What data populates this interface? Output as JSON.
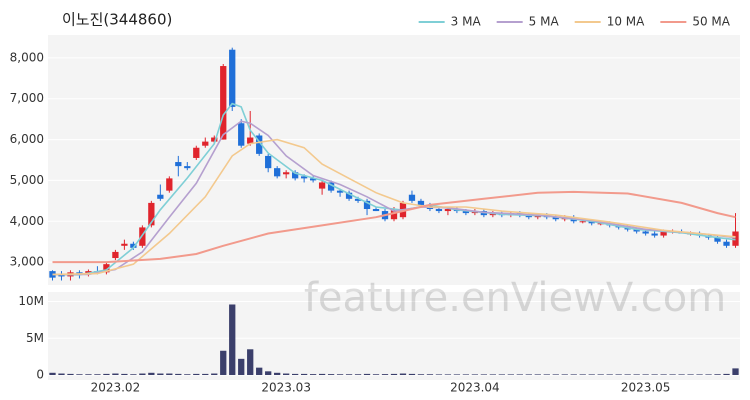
{
  "watermark": "feature.enViewV.com",
  "chart_data": [
    {
      "type": "candlestick",
      "title": "이노진(344860)",
      "legend": "top-right",
      "up_color": "#e0242c",
      "down_color": "#1f6fd8",
      "open": [
        2780,
        2700,
        2650,
        2750,
        2700,
        2780,
        2750,
        3100,
        3400,
        3450,
        3400,
        3900,
        4650,
        4750,
        5450,
        5350,
        5550,
        5850,
        5950,
        6000,
        8200,
        6400,
        5900,
        6100,
        5600,
        5300,
        5150,
        5200,
        5100,
        5050,
        4800,
        4950,
        4750,
        4700,
        4550,
        4500,
        4300,
        4250,
        4050,
        4100,
        4650,
        4500,
        4400,
        4300,
        4250,
        4300,
        4250,
        4200,
        4250,
        4150,
        4200,
        4150,
        4200,
        4150,
        4100,
        4150,
        4100,
        4050,
        4100,
        4000,
        4000,
        3950,
        3950,
        3900,
        3850,
        3800,
        3750,
        3700,
        3650,
        3750,
        3750,
        3700,
        3700,
        3650,
        3600,
        3500,
        3400
      ],
      "high": [
        2800,
        2780,
        2800,
        2800,
        2820,
        2900,
        3000,
        3300,
        3550,
        3500,
        3900,
        4500,
        4900,
        5100,
        5600,
        5450,
        5850,
        6050,
        6100,
        7850,
        8250,
        6500,
        6700,
        6150,
        5650,
        5350,
        5250,
        5250,
        5150,
        5100,
        5000,
        5000,
        4800,
        4750,
        4600,
        4550,
        4350,
        4300,
        4350,
        4500,
        4750,
        4550,
        4450,
        4350,
        4350,
        4350,
        4300,
        4300,
        4300,
        4250,
        4250,
        4250,
        4250,
        4200,
        4200,
        4200,
        4150,
        4150,
        4150,
        4050,
        4050,
        4000,
        4000,
        3950,
        3900,
        3850,
        3800,
        3750,
        3800,
        3800,
        3800,
        3750,
        3750,
        3700,
        3650,
        3550,
        4200
      ],
      "low": [
        2550,
        2550,
        2550,
        2600,
        2650,
        2700,
        2700,
        3050,
        3300,
        3300,
        3350,
        3850,
        4500,
        4700,
        5100,
        5250,
        5500,
        5800,
        5900,
        6000,
        6700,
        5800,
        5850,
        5600,
        5200,
        5050,
        5050,
        5000,
        4950,
        4950,
        4650,
        4700,
        4600,
        4500,
        4450,
        4150,
        4250,
        4000,
        4000,
        4050,
        4450,
        4350,
        4250,
        4200,
        4150,
        4200,
        4150,
        4150,
        4100,
        4100,
        4100,
        4100,
        4100,
        4050,
        4050,
        4050,
        4000,
        4000,
        3950,
        3950,
        3900,
        3900,
        3850,
        3800,
        3750,
        3700,
        3650,
        3600,
        3600,
        3700,
        3700,
        3650,
        3600,
        3550,
        3450,
        3350,
        3350
      ],
      "close": [
        2620,
        2650,
        2750,
        2700,
        2780,
        2750,
        2950,
        3250,
        3450,
        3350,
        3850,
        4450,
        4550,
        5050,
        5350,
        5300,
        5800,
        5950,
        6050,
        7800,
        6800,
        5850,
        6050,
        5650,
        5300,
        5100,
        5200,
        5050,
        5050,
        5000,
        4950,
        4750,
        4700,
        4550,
        4500,
        4300,
        4250,
        4050,
        4300,
        4450,
        4500,
        4400,
        4300,
        4250,
        4300,
        4250,
        4200,
        4250,
        4150,
        4200,
        4150,
        4200,
        4150,
        4100,
        4150,
        4100,
        4050,
        4100,
        4000,
        4000,
        3950,
        3950,
        3900,
        3850,
        3800,
        3750,
        3700,
        3650,
        3750,
        3750,
        3700,
        3700,
        3650,
        3600,
        3500,
        3400,
        3750
      ],
      "series": [
        {
          "name": "3 MA",
          "color": "#7fcfd6",
          "x": [
            0,
            3,
            6,
            9,
            12,
            15,
            18,
            19,
            20,
            21,
            22,
            24,
            27,
            30,
            33,
            36,
            39,
            42,
            45,
            50,
            55,
            60,
            65,
            70,
            74,
            76
          ],
          "values": [
            2700,
            2690,
            2810,
            3350,
            4280,
            5060,
            5900,
            6600,
            6880,
            6800,
            6230,
            5670,
            5180,
            5000,
            4670,
            4350,
            4270,
            4400,
            4280,
            4170,
            4130,
            4000,
            3800,
            3720,
            3600,
            3550
          ]
        },
        {
          "name": "5 MA",
          "color": "#b5a0cf",
          "x": [
            0,
            4,
            7,
            10,
            13,
            16,
            19,
            21,
            22,
            24,
            26,
            29,
            32,
            35,
            38,
            41,
            44,
            48,
            54,
            60,
            66,
            72,
            76
          ],
          "values": [
            2700,
            2700,
            2820,
            3250,
            4100,
            4930,
            6120,
            6450,
            6400,
            6100,
            5600,
            5120,
            4900,
            4600,
            4250,
            4350,
            4330,
            4220,
            4150,
            4020,
            3800,
            3700,
            3600
          ]
        },
        {
          "name": "10 MA",
          "color": "#f3c98e",
          "x": [
            0,
            5,
            9,
            13,
            17,
            20,
            22,
            25,
            28,
            30,
            33,
            36,
            39,
            42,
            46,
            50,
            56,
            62,
            68,
            76
          ],
          "values": [
            2700,
            2720,
            2950,
            3700,
            4600,
            5600,
            5900,
            6000,
            5800,
            5400,
            5050,
            4700,
            4450,
            4350,
            4350,
            4250,
            4150,
            3980,
            3780,
            3620
          ]
        },
        {
          "name": "50 MA",
          "color": "#f29a8c",
          "x": [
            0,
            6,
            12,
            16,
            19,
            24,
            30,
            36,
            42,
            48,
            54,
            58,
            64,
            70,
            74,
            76
          ],
          "values": [
            3000,
            3000,
            3080,
            3200,
            3400,
            3700,
            3900,
            4100,
            4400,
            4550,
            4700,
            4720,
            4680,
            4450,
            4200,
            4100
          ]
        }
      ],
      "xlim": [
        -0.5,
        76.5
      ],
      "ylim": [
        2440,
        8560
      ],
      "yticks": [
        {
          "value": 3000,
          "label": "3,000"
        },
        {
          "value": 4000,
          "label": "4,000"
        },
        {
          "value": 5000,
          "label": "5,000"
        },
        {
          "value": 6000,
          "label": "6,000"
        },
        {
          "value": 7000,
          "label": "7,000"
        },
        {
          "value": 8000,
          "label": "8,000"
        }
      ]
    },
    {
      "type": "bar",
      "color": "#3b3f6b",
      "categories": [
        null,
        null,
        null,
        null,
        null,
        null,
        null,
        "2023.02",
        null,
        null,
        null,
        null,
        null,
        null,
        null,
        null,
        null,
        null,
        null,
        null,
        null,
        null,
        null,
        null,
        null,
        null,
        "2023.03",
        null,
        null,
        null,
        null,
        null,
        null,
        null,
        null,
        null,
        null,
        null,
        null,
        null,
        null,
        null,
        null,
        null,
        null,
        null,
        null,
        "2023.04",
        null,
        null,
        null,
        null,
        null,
        null,
        null,
        null,
        null,
        null,
        null,
        null,
        null,
        null,
        null,
        null,
        null,
        null,
        "2023.05",
        null,
        null,
        null,
        null,
        null,
        null,
        null,
        null,
        null,
        null
      ],
      "values": [
        300000,
        200000,
        150000,
        100000,
        100000,
        100000,
        150000,
        200000,
        150000,
        100000,
        200000,
        300000,
        200000,
        200000,
        150000,
        100000,
        150000,
        150000,
        200000,
        3300000,
        9600000,
        2200000,
        3500000,
        1000000,
        500000,
        300000,
        200000,
        150000,
        150000,
        120000,
        150000,
        120000,
        100000,
        100000,
        100000,
        150000,
        100000,
        120000,
        150000,
        200000,
        150000,
        100000,
        100000,
        80000,
        80000,
        80000,
        80000,
        80000,
        80000,
        80000,
        80000,
        80000,
        80000,
        80000,
        80000,
        80000,
        80000,
        80000,
        80000,
        80000,
        80000,
        80000,
        80000,
        80000,
        80000,
        80000,
        80000,
        80000,
        80000,
        80000,
        80000,
        80000,
        80000,
        80000,
        100000,
        150000,
        900000
      ],
      "ylim": [
        0,
        11300000
      ],
      "yticks": [
        0,
        {
          "value": 5000000,
          "label": "5M"
        },
        {
          "value": 10000000,
          "label": "10M"
        }
      ]
    }
  ]
}
